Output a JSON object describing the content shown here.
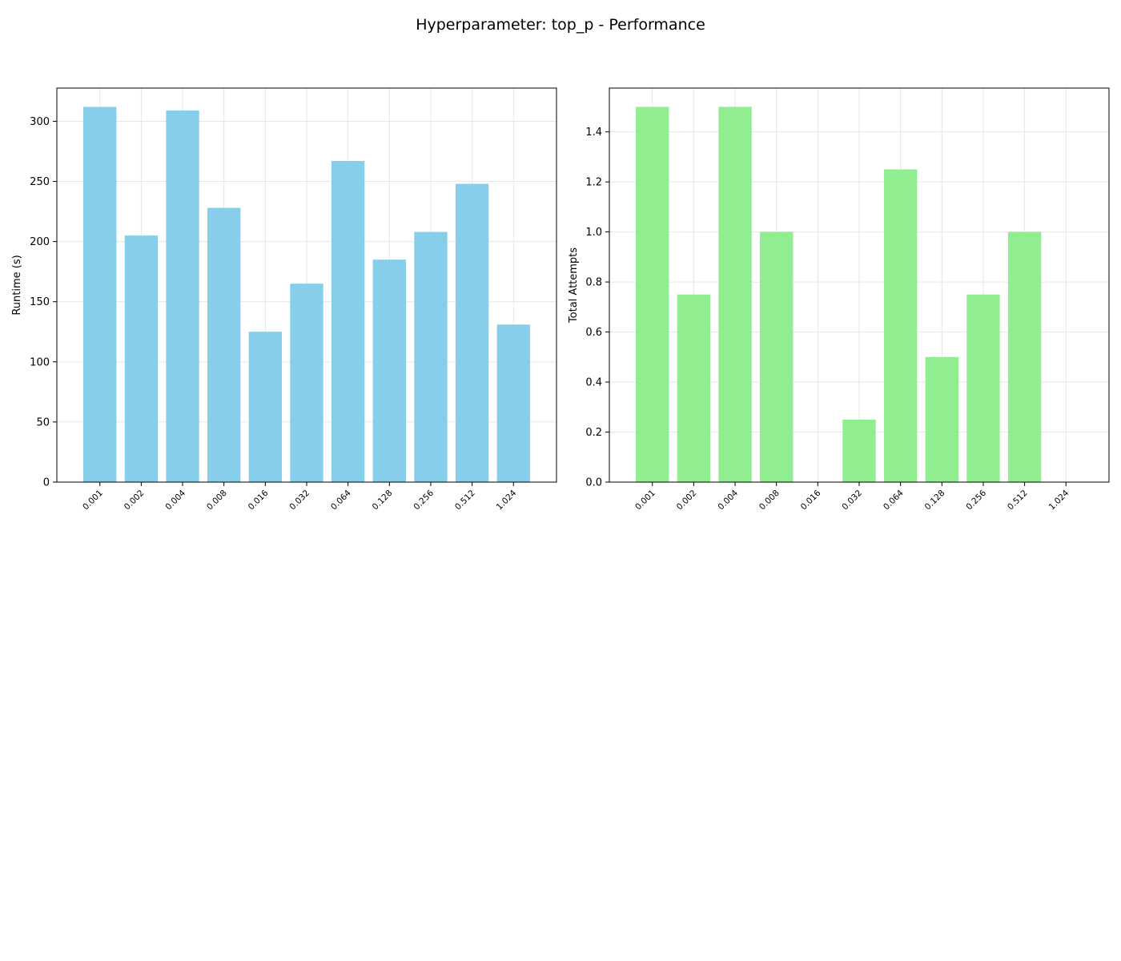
{
  "title": "Hyperparameter: top_p - Performance",
  "chart_data": [
    {
      "type": "bar",
      "categories": [
        "0.001",
        "0.002",
        "0.004",
        "0.008",
        "0.016",
        "0.032",
        "0.064",
        "0.128",
        "0.256",
        "0.512",
        "1.024"
      ],
      "values": [
        312,
        205,
        309,
        228,
        125,
        165,
        267,
        185,
        208,
        248,
        131
      ],
      "title": "",
      "xlabel": "",
      "ylabel": "Runtime (s)",
      "ylim": [
        0,
        327.6
      ],
      "yticks": [
        0,
        50,
        100,
        150,
        200,
        250,
        300
      ],
      "ytick_labels": [
        "0",
        "50",
        "100",
        "150",
        "200",
        "250",
        "300"
      ],
      "grid": true,
      "color": "#87ceeb"
    },
    {
      "type": "bar",
      "categories": [
        "0.001",
        "0.002",
        "0.004",
        "0.008",
        "0.016",
        "0.032",
        "0.064",
        "0.128",
        "0.256",
        "0.512",
        "1.024"
      ],
      "values": [
        1.5,
        0.75,
        1.5,
        1.0,
        0,
        0.25,
        1.25,
        0.5,
        0.75,
        1.0,
        0
      ],
      "title": "",
      "xlabel": "",
      "ylabel": "Total Attempts",
      "ylim": [
        0,
        1.575
      ],
      "yticks": [
        0,
        0.2,
        0.4,
        0.6,
        0.8,
        1.0,
        1.2,
        1.4
      ],
      "ytick_labels": [
        "0.0",
        "0.2",
        "0.4",
        "0.6",
        "0.8",
        "1.0",
        "1.2",
        "1.4"
      ],
      "grid": true,
      "color": "#90ee90"
    }
  ]
}
